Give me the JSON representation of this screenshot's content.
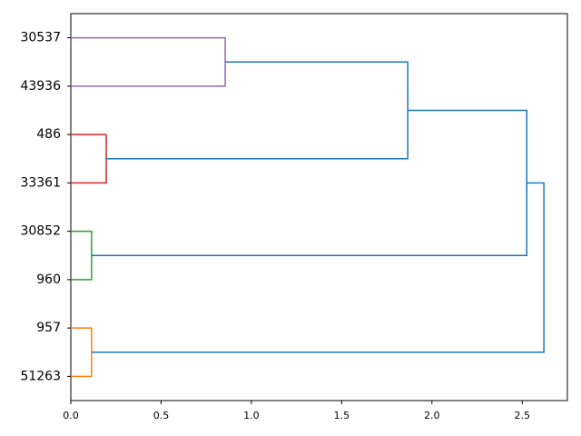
{
  "chart_data": {
    "type": "dendrogram",
    "orientation": "right",
    "leaves": [
      "30537",
      "43936",
      "486",
      "33361",
      "30852",
      "960",
      "957",
      "51263"
    ],
    "merges": [
      {
        "children": [
          0,
          1
        ],
        "height": 0.855,
        "color": "#9467bd"
      },
      {
        "children": [
          2,
          3
        ],
        "height": 0.196,
        "color": "#d62728"
      },
      {
        "children": [
          4,
          5
        ],
        "height": 0.115,
        "color": "#2ca02c"
      },
      {
        "children": [
          6,
          7
        ],
        "height": 0.115,
        "color": "#ff7f0e"
      },
      {
        "children": [
          8,
          9
        ],
        "height": 1.866,
        "color": "#1f77b4"
      },
      {
        "children": [
          12,
          10
        ],
        "height": 2.525,
        "color": "#1f77b4"
      },
      {
        "children": [
          13,
          11
        ],
        "height": 2.62,
        "color": "#1f77b4"
      }
    ],
    "xlim": [
      0,
      2.75
    ],
    "xticks": [
      {
        "value": 0,
        "label": "0.0"
      },
      {
        "value": 0.5,
        "label": "0.5"
      },
      {
        "value": 1,
        "label": "1.0"
      },
      {
        "value": 1.5,
        "label": "1.5"
      },
      {
        "value": 2,
        "label": "2.0"
      },
      {
        "value": 2.5,
        "label": "2.5"
      }
    ]
  }
}
